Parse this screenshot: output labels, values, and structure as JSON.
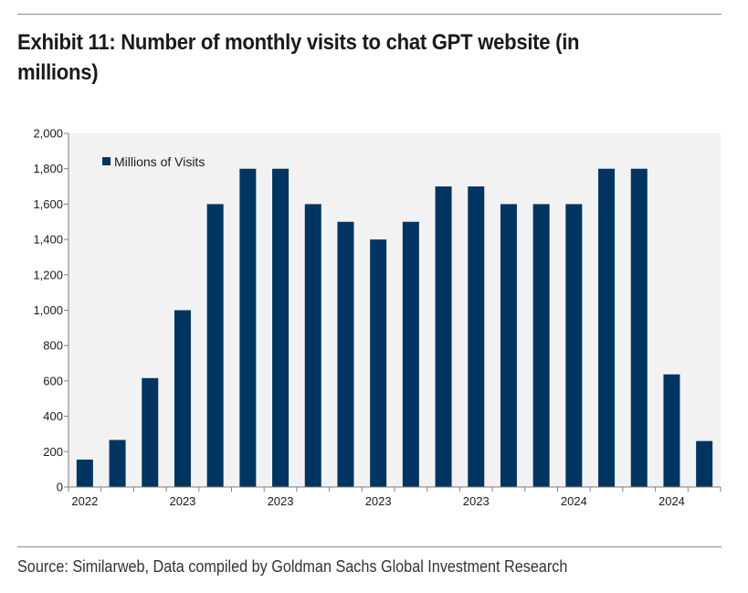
{
  "title": "Exhibit 11: Number of monthly visits to chat GPT website (in millions)",
  "source": "Source: Similarweb, Data compiled by Goldman Sachs Global Investment Research",
  "colors": {
    "bar": "#003562",
    "plot_bg": "#f2f2f2",
    "axis": "#7f7f7f"
  },
  "chart_data": {
    "type": "bar",
    "title": "",
    "xlabel": "",
    "ylabel": "",
    "ylim": [
      0,
      2000
    ],
    "yticks": [
      0,
      200,
      400,
      600,
      800,
      1000,
      1200,
      1400,
      1600,
      1800,
      2000
    ],
    "ytick_labels": [
      "0",
      "200",
      "400",
      "600",
      "800",
      "1,000",
      "1,200",
      "1,400",
      "1,600",
      "1,800",
      "2,000"
    ],
    "x_tick_labels": [
      "2022",
      "2023",
      "2023",
      "2023",
      "2023",
      "2024",
      "2024"
    ],
    "legend": {
      "position": "top-left",
      "entries": [
        "Millions of Visits"
      ]
    },
    "grid": false,
    "series": [
      {
        "name": "Millions of Visits",
        "values": [
          155,
          266,
          616,
          1000,
          1600,
          1800,
          1800,
          1600,
          1500,
          1400,
          1500,
          1700,
          1700,
          1600,
          1600,
          1600,
          1800,
          1800,
          637,
          260
        ]
      }
    ]
  }
}
